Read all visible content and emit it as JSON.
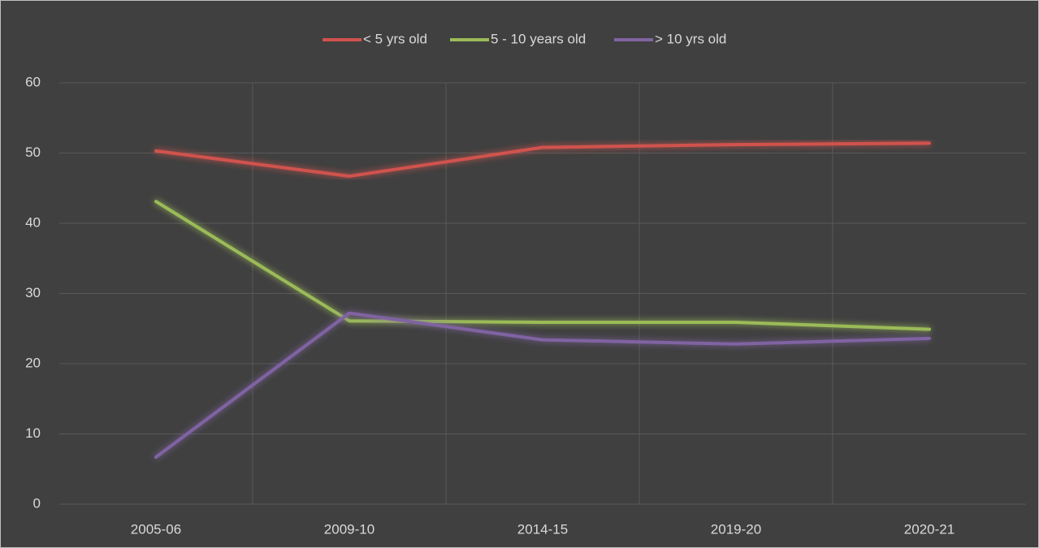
{
  "chart_data": {
    "type": "line",
    "categories": [
      "2005-06",
      "2009-10",
      "2014-15",
      "2019-20",
      "2020-21"
    ],
    "series": [
      {
        "name": "< 5 yrs old",
        "color": "#d0524d",
        "values": [
          50.3,
          46.7,
          50.8,
          51.2,
          51.4
        ]
      },
      {
        "name": "5 - 10 years old",
        "color": "#9bbb59",
        "values": [
          43.1,
          26.1,
          25.9,
          25.9,
          24.9
        ]
      },
      {
        "name": "> 10 yrs old",
        "color": "#8064a2",
        "values": [
          6.7,
          27.2,
          23.4,
          22.8,
          23.6
        ]
      }
    ],
    "ylim": [
      0,
      60
    ],
    "yticks": [
      0,
      10,
      20,
      30,
      40,
      50,
      60
    ],
    "grid": true,
    "legend": "top"
  }
}
